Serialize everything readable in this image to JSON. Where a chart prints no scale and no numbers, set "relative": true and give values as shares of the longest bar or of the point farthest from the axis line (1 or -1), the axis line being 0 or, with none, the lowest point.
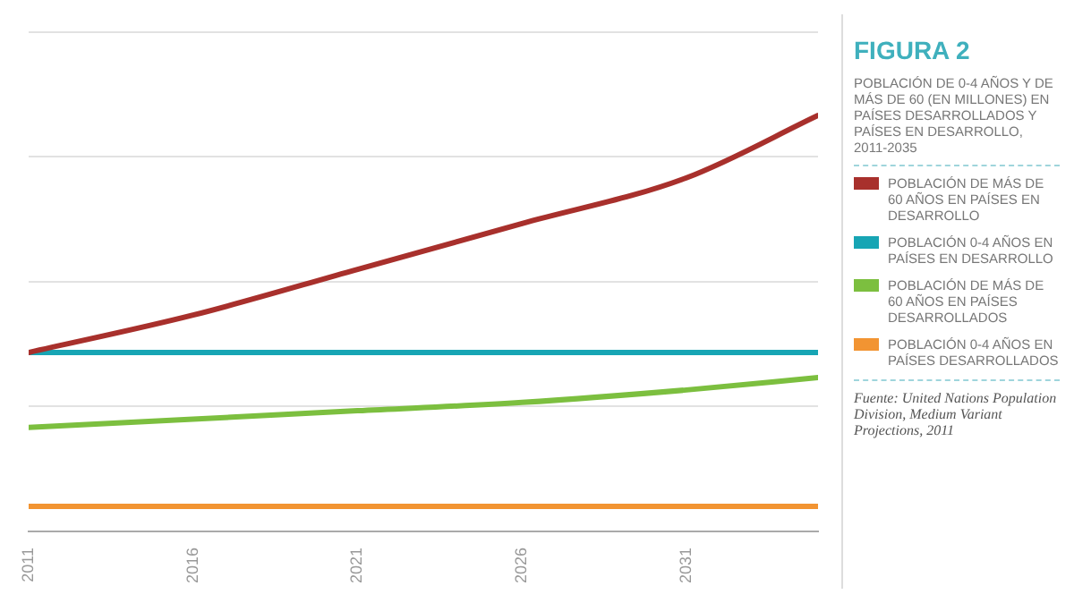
{
  "chart_data": {
    "type": "line",
    "title": "FIGURA 2",
    "subtitle": "POBLACIÓN DE 0-4 AÑOS Y DE MÁS DE 60 (EN MILLONES) EN PAÍSES DESARROLLADOS Y PAÍSES EN DESARROLLO, 2011-2035",
    "relative": true,
    "x": [
      2011,
      2016,
      2021,
      2026,
      2031,
      2035
    ],
    "xlim": [
      2011,
      2035
    ],
    "xticks": [
      2011,
      2016,
      2021,
      2026,
      2031
    ],
    "series": [
      {
        "name": "POBLACIÓN DE MÁS DE 60 AÑOS EN PAÍSES EN DESARROLLO",
        "color": "#a8302c",
        "values": [
          0.43,
          0.52,
          0.63,
          0.74,
          0.85,
          1
        ]
      },
      {
        "name": "POBLACIÓN 0-4 AÑOS EN PAÍSES EN DESARROLLO",
        "color": "#17a5b4",
        "values": [
          0.43,
          0.43,
          0.43,
          0.43,
          0.43,
          0.43
        ]
      },
      {
        "name": "POBLACIÓN DE MÁS DE 60 AÑOS EN PAÍSES DESARROLLADOS",
        "color": "#7cbf3f",
        "values": [
          0.25,
          0.27,
          0.29,
          0.31,
          0.34,
          0.37
        ]
      },
      {
        "name": "POBLACIÓN 0-4 AÑOS EN PAÍSES DESARROLLADOS",
        "color": "#f29432",
        "values": [
          0.06,
          0.06,
          0.06,
          0.06,
          0.06,
          0.06
        ]
      }
    ],
    "grid": "y",
    "legend": "right",
    "marker": "none",
    "line_style": "solid",
    "annotations": [
      "Fuente: United Nations Population Division, Medium Variant Projections, 2011"
    ]
  }
}
